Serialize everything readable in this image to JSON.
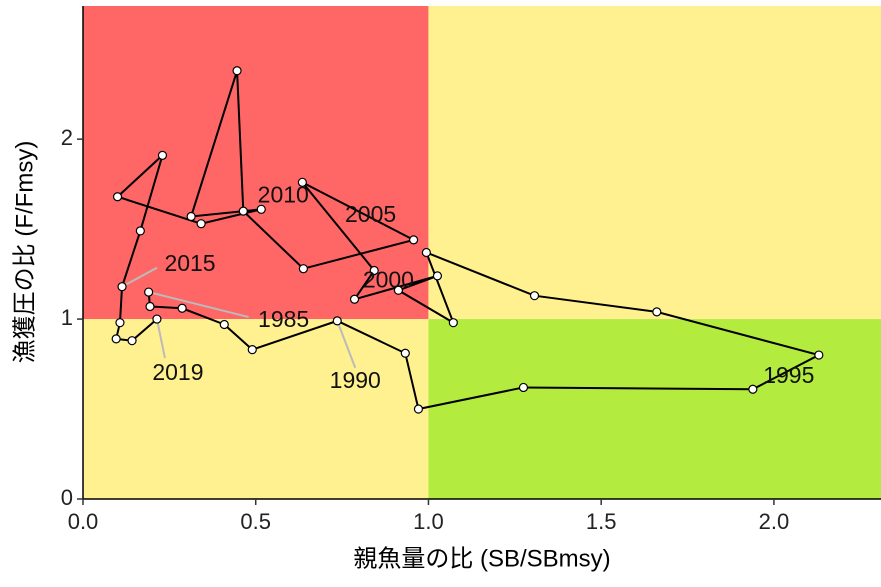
{
  "chart_data": {
    "type": "line",
    "x_label": "親魚量の比 (SB/SBmsy)",
    "y_label": "漁獲圧の比 (F/Fmsy)",
    "xlim": [
      0,
      2.31
    ],
    "ylim": [
      0,
      2.74
    ],
    "xticks": [
      {
        "value": 0,
        "label": "0.0"
      },
      {
        "value": 0.5,
        "label": "0.5"
      },
      {
        "value": 1,
        "label": "1.0"
      },
      {
        "value": 1.5,
        "label": "1.5"
      },
      {
        "value": 2,
        "label": "2.0"
      }
    ],
    "yticks": [
      0,
      1,
      2
    ],
    "thresholds": {
      "x": 1,
      "y": 1
    },
    "zone_colors": {
      "overfished_overfishing": "#ff6666",
      "caution": "#fff18f",
      "healthy": "#b3eb3f"
    },
    "series": [
      {
        "color": "#000000",
        "x": [
          0.19,
          0.194,
          0.287,
          0.409,
          0.49,
          0.736,
          0.933,
          0.971,
          1.275,
          1.939,
          2.13,
          1.661,
          1.307,
          0.994,
          1.072,
          0.913,
          1.026,
          0.786,
          0.843,
          0.635,
          0.957,
          0.638,
          0.464,
          0.446,
          0.313,
          0.516,
          0.342,
          0.1,
          0.23,
          0.166,
          0.113,
          0.107,
          0.096,
          0.142,
          0.214
        ],
        "values": [
          1.15,
          1.07,
          1.06,
          0.97,
          0.83,
          0.99,
          0.81,
          0.5,
          0.62,
          0.61,
          0.8,
          1.04,
          1.13,
          1.37,
          0.98,
          1.16,
          1.24,
          1.11,
          1.27,
          1.76,
          1.44,
          1.28,
          1.6,
          2.38,
          1.57,
          1.61,
          1.53,
          1.68,
          1.91,
          1.49,
          1.18,
          0.98,
          0.89,
          0.88,
          1.0
        ],
        "point_labels": [
          "1985",
          null,
          null,
          null,
          null,
          "1990",
          null,
          null,
          null,
          null,
          "1995",
          null,
          null,
          null,
          null,
          "2000",
          null,
          null,
          null,
          null,
          "2005",
          null,
          null,
          null,
          null,
          "2010",
          null,
          null,
          null,
          null,
          "2015",
          null,
          null,
          null,
          "2019"
        ]
      }
    ]
  }
}
